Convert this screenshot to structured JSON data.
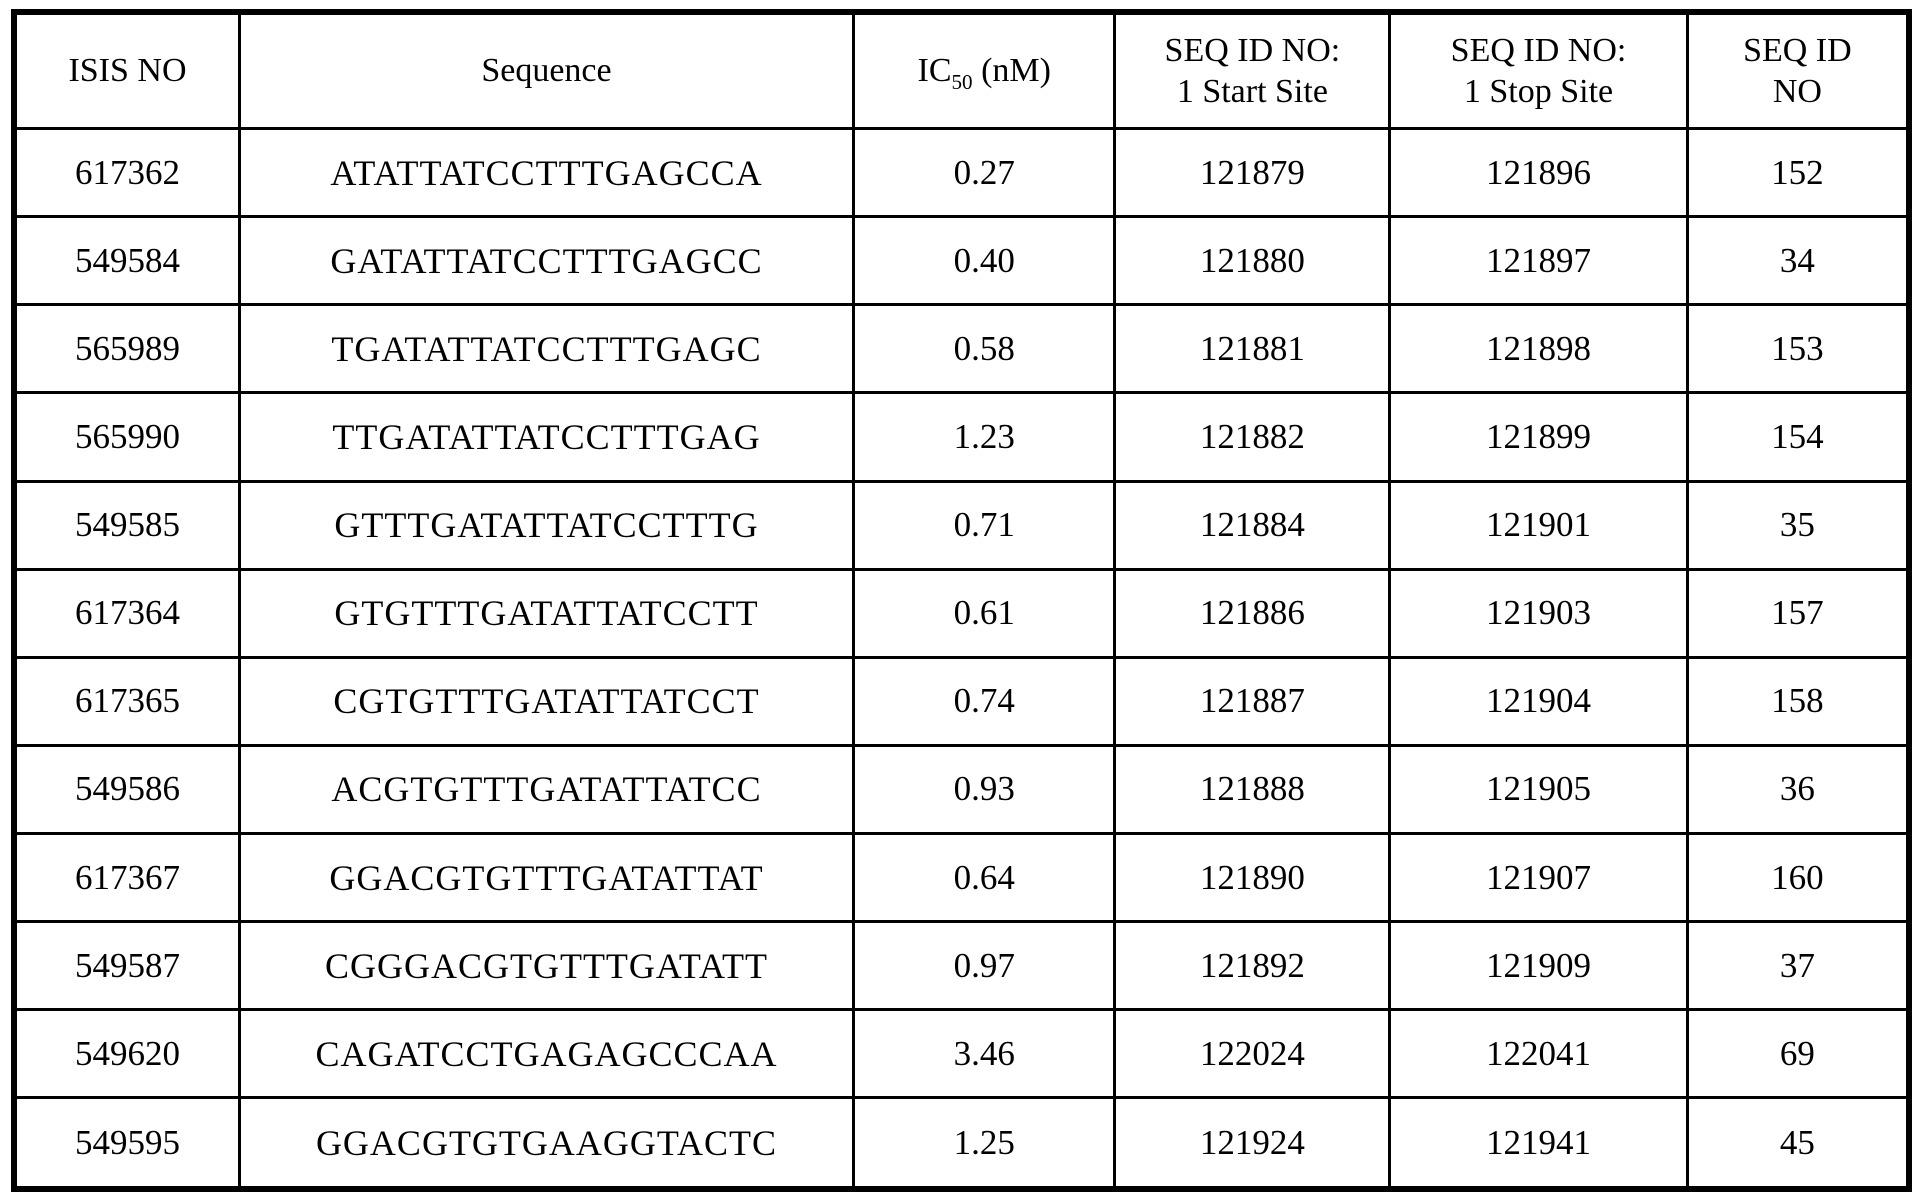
{
  "colors": {
    "text": "#000000",
    "border": "#000000",
    "background": "#ffffff"
  },
  "table": {
    "headers": {
      "isis_no": "ISIS NO",
      "sequence": "Sequence",
      "ic50_prefix": "IC",
      "ic50_sub": "50",
      "ic50_suffix": " (nM)",
      "start_line1": "SEQ ID NO:",
      "start_line2": "1 Start Site",
      "stop_line1": "SEQ ID NO:",
      "stop_line2": "1 Stop Site",
      "seqid_line1": "SEQ ID",
      "seqid_line2": "NO"
    },
    "rows": [
      {
        "isis_no": "617362",
        "sequence": "ATATTATCCTTTGAGCCA",
        "ic50": "0.27",
        "start_site": "121879",
        "stop_site": "121896",
        "seq_id_no": "152"
      },
      {
        "isis_no": "549584",
        "sequence": "GATATTATCCTTTGAGCC",
        "ic50": "0.40",
        "start_site": "121880",
        "stop_site": "121897",
        "seq_id_no": "34"
      },
      {
        "isis_no": "565989",
        "sequence": "TGATATTATCCTTTGAGC",
        "ic50": "0.58",
        "start_site": "121881",
        "stop_site": "121898",
        "seq_id_no": "153"
      },
      {
        "isis_no": "565990",
        "sequence": "TTGATATTATCCTTTGAG",
        "ic50": "1.23",
        "start_site": "121882",
        "stop_site": "121899",
        "seq_id_no": "154"
      },
      {
        "isis_no": "549585",
        "sequence": "GTTTGATATTATCCTTTG",
        "ic50": "0.71",
        "start_site": "121884",
        "stop_site": "121901",
        "seq_id_no": "35"
      },
      {
        "isis_no": "617364",
        "sequence": "GTGTTTGATATTATCCTT",
        "ic50": "0.61",
        "start_site": "121886",
        "stop_site": "121903",
        "seq_id_no": "157"
      },
      {
        "isis_no": "617365",
        "sequence": "CGTGTTTGATATTATCCT",
        "ic50": "0.74",
        "start_site": "121887",
        "stop_site": "121904",
        "seq_id_no": "158"
      },
      {
        "isis_no": "549586",
        "sequence": "ACGTGTTTGATATTATCC",
        "ic50": "0.93",
        "start_site": "121888",
        "stop_site": "121905",
        "seq_id_no": "36"
      },
      {
        "isis_no": "617367",
        "sequence": "GGACGTGTTTGATATTAT",
        "ic50": "0.64",
        "start_site": "121890",
        "stop_site": "121907",
        "seq_id_no": "160"
      },
      {
        "isis_no": "549587",
        "sequence": "CGGGACGTGTTTGATATT",
        "ic50": "0.97",
        "start_site": "121892",
        "stop_site": "121909",
        "seq_id_no": "37"
      },
      {
        "isis_no": "549620",
        "sequence": "CAGATCCTGAGAGCCCAA",
        "ic50": "3.46",
        "start_site": "122024",
        "stop_site": "122041",
        "seq_id_no": "69"
      },
      {
        "isis_no": "549595",
        "sequence": "GGACGTGTGAAGGTACTC",
        "ic50": "1.25",
        "start_site": "121924",
        "stop_site": "121941",
        "seq_id_no": "45"
      }
    ]
  }
}
